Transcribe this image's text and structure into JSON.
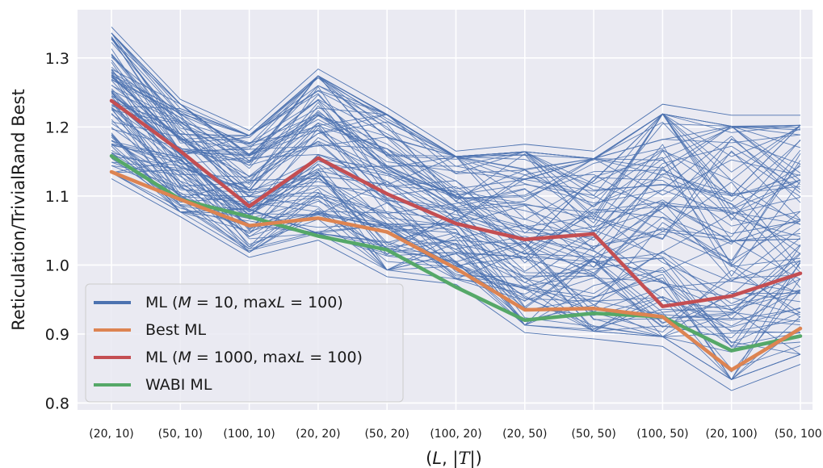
{
  "chart_data": {
    "type": "line",
    "xlabel": "(L, |T|)",
    "ylabel": "Reticulation/TrivialRand Best",
    "categories": [
      "(20, 10)",
      "(50, 10)",
      "(100, 10)",
      "(20, 20)",
      "(50, 20)",
      "(100, 20)",
      "(20, 50)",
      "(50, 50)",
      "(100, 50)",
      "(20, 100)",
      "(50, 100)"
    ],
    "y_ticks": [
      "0.8",
      "0.9",
      "1.0",
      "1.1",
      "1.2",
      "1.3"
    ],
    "ylim": [
      0.79,
      1.37
    ],
    "grid": true,
    "legend_position": "lower-left",
    "background_color": "#eaeaf2",
    "grid_color": "#ffffff",
    "legend_labels": {
      "ml_m10": "ML (M = 10, maxL = 100)",
      "best_ml": "Best ML",
      "ml_m1000": "ML (M = 1000, maxL = 100)",
      "wabi_ml": "WABI ML"
    },
    "series": [
      {
        "name": "ML (M = 10, maxL = 100)",
        "color": "#4c72b0",
        "representative_of_bundle": true
      },
      {
        "name": "Best ML",
        "color": "#dd8452",
        "values": [
          1.135,
          1.095,
          1.057,
          1.068,
          1.048,
          0.995,
          0.935,
          0.937,
          0.925,
          0.848,
          0.908
        ]
      },
      {
        "name": "ML (M = 1000, maxL = 100)",
        "color": "#c44e52",
        "values": [
          1.238,
          1.165,
          1.085,
          1.155,
          1.103,
          1.06,
          1.037,
          1.045,
          0.94,
          0.955,
          0.988
        ]
      },
      {
        "name": "WABI ML",
        "color": "#55a868",
        "values": [
          1.158,
          1.095,
          1.07,
          1.042,
          1.022,
          0.968,
          0.92,
          0.93,
          0.925,
          0.876,
          0.897
        ]
      }
    ],
    "bundle_envelope": {
      "upper": [
        1.345,
        1.24,
        1.195,
        1.284,
        1.228,
        1.165,
        1.175,
        1.165,
        1.233,
        1.217,
        1.217
      ],
      "lower": [
        1.125,
        1.07,
        1.011,
        1.036,
        0.983,
        0.972,
        0.902,
        0.893,
        0.882,
        0.818,
        0.856
      ]
    }
  }
}
